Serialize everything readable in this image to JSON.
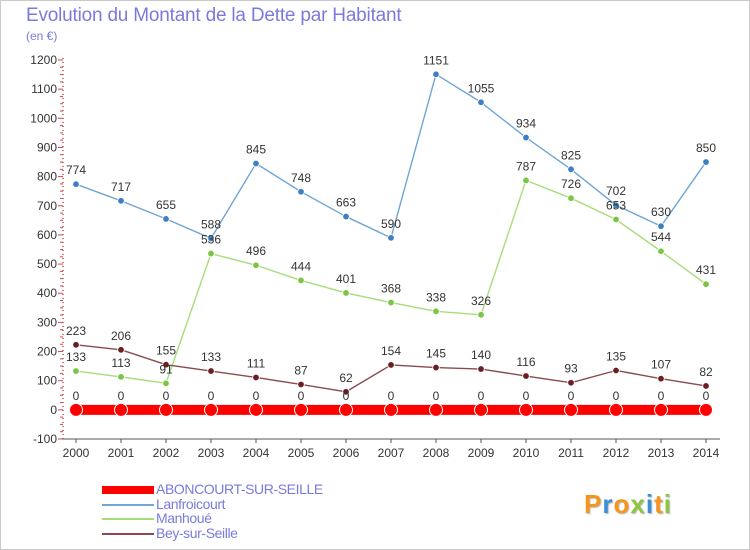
{
  "title": "Evolution du Montant de la Dette par Habitant",
  "subtitle": "(en €)",
  "logo": {
    "text": "Proxiti",
    "colors": [
      "#f7941d",
      "#3a8fd9",
      "#f7941d",
      "#8cc63f",
      "#3a8fd9",
      "#f7941d",
      "#8cc63f"
    ]
  },
  "chart_data": {
    "type": "line",
    "title": "Evolution du Montant de la Dette par Habitant",
    "subtitle": "(en €)",
    "xlabel": "",
    "ylabel": "",
    "x": [
      "2000",
      "2001",
      "2002",
      "2003",
      "2004",
      "2005",
      "2006",
      "2007",
      "2008",
      "2009",
      "2010",
      "2011",
      "2012",
      "2013",
      "2014"
    ],
    "ylim": [
      -100,
      1200
    ],
    "yticks": [
      -100,
      0,
      100,
      200,
      300,
      400,
      500,
      600,
      700,
      800,
      900,
      1000,
      1100,
      1200
    ],
    "grid": false,
    "legend_position": "bottom-left",
    "series": [
      {
        "name": "ABONCOURT-SUR-SEILLE",
        "color": "#ff0000",
        "stroke_role": "thick",
        "values": [
          0,
          0,
          0,
          0,
          0,
          0,
          0,
          0,
          0,
          0,
          0,
          0,
          0,
          0,
          0
        ]
      },
      {
        "name": "Lanfroicourt",
        "color": "#6fa6d6",
        "marker": "#3d7fc2",
        "values": [
          774,
          717,
          655,
          588,
          845,
          748,
          663,
          590,
          1151,
          1055,
          934,
          825,
          702,
          630,
          850
        ]
      },
      {
        "name": "Manhoué",
        "color": "#a6dd7a",
        "marker": "#7cc544",
        "values": [
          133,
          113,
          91,
          536,
          496,
          444,
          401,
          368,
          338,
          326,
          787,
          726,
          653,
          544,
          431
        ]
      },
      {
        "name": "Bey-sur-Seille",
        "color": "#8a4a4e",
        "marker": "#6b1f24",
        "values": [
          223,
          206,
          155,
          133,
          111,
          87,
          62,
          154,
          145,
          140,
          116,
          93,
          135,
          107,
          82
        ]
      }
    ]
  }
}
